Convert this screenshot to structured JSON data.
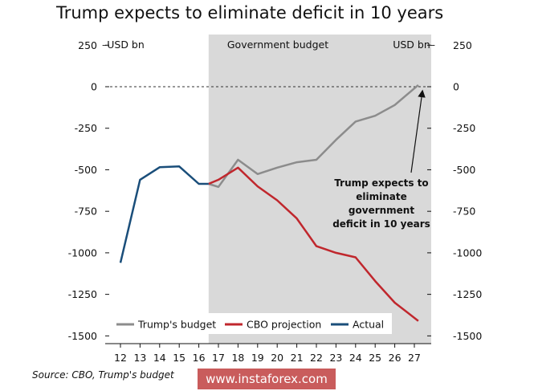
{
  "title": "Trump expects to eliminate deficit in 10 years",
  "source": "Source: CBO, Trump's budget",
  "watermark": "www.instaforex.com",
  "chart_data": {
    "type": "line",
    "title": "Trump expects to eliminate deficit in 10 years",
    "unit_left": "USD bn",
    "unit_right": "USD bn",
    "shaded_label": "Government budget",
    "shaded_from": 16.5,
    "x_ticks": [
      "12",
      "13",
      "14",
      "15",
      "16",
      "17",
      "18",
      "19",
      "20",
      "21",
      "22",
      "23",
      "24",
      "25",
      "26",
      "27"
    ],
    "y_ticks": [
      250,
      0,
      -250,
      -500,
      -750,
      -1000,
      -1250,
      -1500
    ],
    "ylim": [
      -1500,
      250
    ],
    "xlim": [
      11.5,
      27.5
    ],
    "zero_line": "dashed",
    "legend_position": "bottom",
    "series": [
      {
        "name": "Trump's budget",
        "color": "#8c8c8c",
        "x": [
          16.5,
          17,
          18,
          19,
          20,
          21,
          22,
          23,
          24,
          25,
          26,
          27.2
        ],
        "values": [
          -585,
          -603,
          -440,
          -526,
          -487,
          -455,
          -440,
          -320,
          -210,
          -175,
          -110,
          10
        ]
      },
      {
        "name": "CBO projection",
        "color": "#c0272d",
        "x": [
          16.5,
          17,
          18,
          19,
          20,
          21,
          22,
          23,
          24,
          25,
          26,
          27.2
        ],
        "values": [
          -585,
          -560,
          -487,
          -600,
          -684,
          -793,
          -960,
          -1000,
          -1027,
          -1170,
          -1300,
          -1410
        ]
      },
      {
        "name": "Actual",
        "color": "#1a4e7a",
        "x": [
          12,
          13,
          14,
          15,
          16,
          16.5
        ],
        "values": [
          -1060,
          -560,
          -485,
          -480,
          -585,
          -585
        ]
      }
    ],
    "annotations": [
      {
        "lines": [
          "Trump expects to",
          "eliminate",
          "government",
          "deficit in 10 years"
        ]
      }
    ]
  }
}
